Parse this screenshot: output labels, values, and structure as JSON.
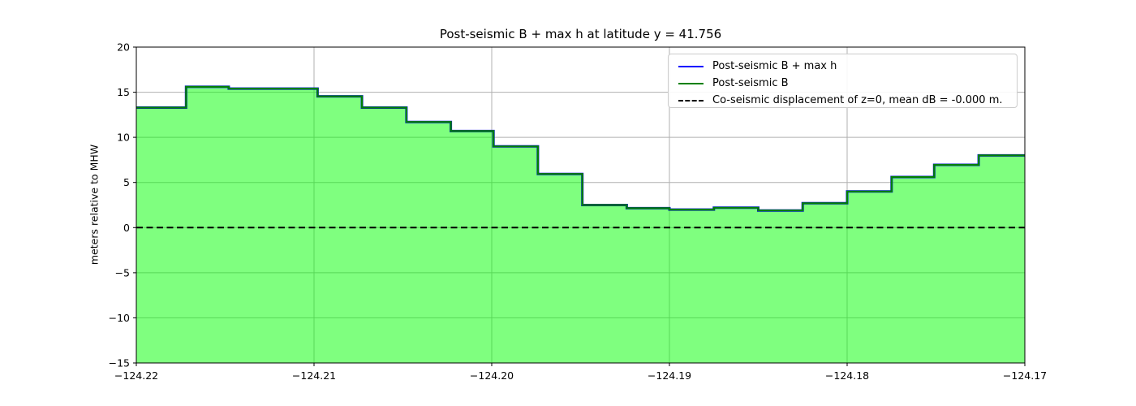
{
  "legend": [
    {
      "label": "Post-seismic B + max h",
      "color": "#0000ff",
      "style": "solid"
    },
    {
      "label": "Post-seismic B",
      "color": "#008000",
      "style": "solid"
    },
    {
      "label": "Co-seismic displacement of z=0, mean dB = -0.000 m.",
      "color": "#000000",
      "style": "dashed"
    }
  ],
  "chart_data": {
    "type": "area",
    "subtype": "step",
    "title": "Post-seismic B + max h at latitude y = 41.756",
    "xlabel": "",
    "ylabel": "meters relative to MHW",
    "xlim": [
      -124.22,
      -124.17
    ],
    "ylim": [
      -15,
      20
    ],
    "xticks": [
      -124.22,
      -124.21,
      -124.2,
      -124.19,
      -124.18,
      -124.17
    ],
    "xtick_labels": [
      "−124.22",
      "−124.21",
      "−124.20",
      "−124.19",
      "−124.18",
      "−124.17"
    ],
    "yticks": [
      20,
      15,
      10,
      5,
      0,
      -5,
      -10,
      -15
    ],
    "ytick_labels": [
      "20",
      "15",
      "10",
      "5",
      "0",
      "−5",
      "−10",
      "−15"
    ],
    "grid": true,
    "grid_color": "#b0b0b0",
    "legend_position": "upper right",
    "step_x": [
      -124.22,
      -124.2172,
      -124.2148,
      -124.2123,
      -124.2098,
      -124.2073,
      -124.2048,
      -124.2023,
      -124.1999,
      -124.1974,
      -124.1949,
      -124.1924,
      -124.19,
      -124.1875,
      -124.185,
      -124.1825,
      -124.18,
      -124.1775,
      -124.1751,
      -124.1726,
      -124.17
    ],
    "series": [
      {
        "name": "Post-seismic B + max h",
        "color": "#0000ff",
        "values": [
          13.3,
          15.6,
          15.4,
          15.4,
          14.55,
          13.3,
          11.7,
          10.7,
          9.0,
          5.95,
          2.5,
          2.15,
          2.0,
          2.2,
          1.9,
          2.7,
          4.0,
          5.6,
          6.95,
          8.0
        ]
      },
      {
        "name": "Post-seismic B",
        "color": "#008000",
        "fill_color": "rgba(0,255,0,0.5)",
        "values": [
          13.3,
          15.6,
          15.4,
          15.4,
          14.55,
          13.3,
          11.7,
          10.7,
          9.0,
          5.95,
          2.5,
          2.15,
          2.0,
          2.2,
          1.9,
          2.7,
          4.0,
          5.6,
          6.95,
          8.0
        ]
      }
    ],
    "reference_line": {
      "name": "Co-seismic displacement of z=0",
      "y": 0,
      "color": "#000000",
      "style": "dashed",
      "mean_dB": "-0.000"
    }
  }
}
